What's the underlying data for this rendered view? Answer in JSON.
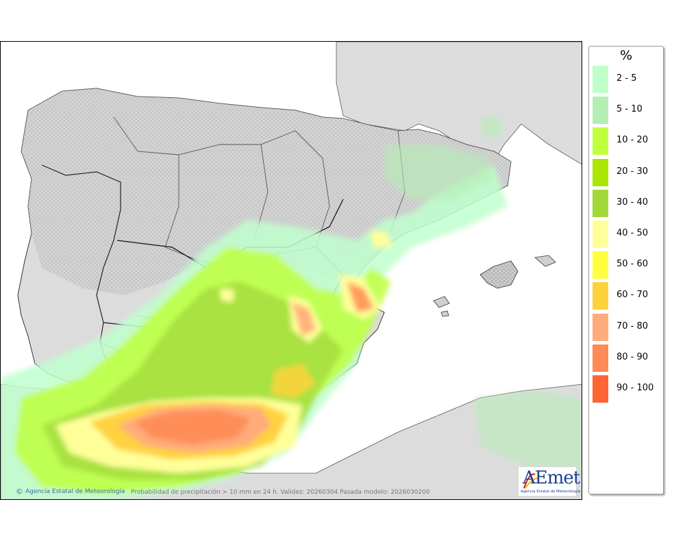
{
  "footer": {
    "agency": "Agencia Estatal de Meteorología",
    "validity": "Probabilidad de precipitación > 10 mm en 24 h. Validez: 20260304 Pasada modelo: 2026030200"
  },
  "logo": {
    "word": "AEmet",
    "subtitle": "Agencia Estatal de Meteorología"
  },
  "legend": {
    "unit": "%",
    "items": [
      {
        "label": "2 - 5",
        "color": "#c0ffcc"
      },
      {
        "label": "5 - 10",
        "color": "#b4eeb4"
      },
      {
        "label": "10 - 20",
        "color": "#c0ff3e"
      },
      {
        "label": "20 - 30",
        "color": "#aae600"
      },
      {
        "label": "30 - 40",
        "color": "#a2d83a"
      },
      {
        "label": "40 - 50",
        "color": "#ffff99"
      },
      {
        "label": "50 - 60",
        "color": "#ffff40"
      },
      {
        "label": "60 - 70",
        "color": "#ffd23c"
      },
      {
        "label": "70 - 80",
        "color": "#ffac7a"
      },
      {
        "label": "80 - 90",
        "color": "#ff8a55"
      },
      {
        "label": "90 - 100",
        "color": "#ff6434"
      }
    ]
  },
  "colors": {
    "land": "#dcdcdc",
    "sea": "#ffffff",
    "border": "#222222"
  }
}
